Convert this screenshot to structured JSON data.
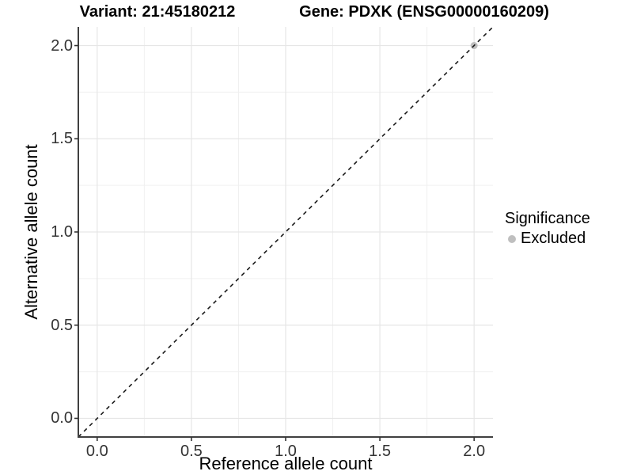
{
  "header": {
    "variant_title": "Variant: 21:45180212",
    "gene_title": "Gene: PDXK (ENSG00000160209)"
  },
  "chart_data": {
    "type": "scatter",
    "title": "Variant: 21:45180212   Gene: PDXK (ENSG00000160209)",
    "xlabel": "Reference allele count",
    "ylabel": "Alternative allele count",
    "xlim": [
      -0.1,
      2.1
    ],
    "ylim": [
      -0.1,
      2.1
    ],
    "x_ticks": [
      0,
      0.5,
      1,
      1.5,
      2
    ],
    "x_tick_labels": [
      "0.0",
      "0.5",
      "1.0",
      "1.5",
      "2.0"
    ],
    "y_ticks": [
      0,
      0.5,
      1,
      1.5,
      2
    ],
    "y_tick_labels": [
      "0.0",
      "0.5",
      "1.0",
      "1.5",
      "2.0"
    ],
    "grid": "major+minor",
    "series": [
      {
        "name": "Excluded",
        "color": "#bfbfbf",
        "points": [
          {
            "x": 2.0,
            "y": 2.0
          }
        ]
      }
    ],
    "reference_line": {
      "slope": 1,
      "intercept": 0,
      "style": "dashed"
    },
    "legend": {
      "title": "Significance",
      "position": "right",
      "items": [
        {
          "label": "Excluded",
          "color": "#bfbfbf"
        }
      ]
    }
  },
  "colors": {
    "background": "#ffffff",
    "grid_major": "#e6e6e6",
    "grid_minor": "#f0f0f0",
    "axis_line": "#404040",
    "tick_mark": "#333333",
    "tick_text": "#333333",
    "dashed_line": "#1a1a1a",
    "point": "#bfbfbf"
  }
}
